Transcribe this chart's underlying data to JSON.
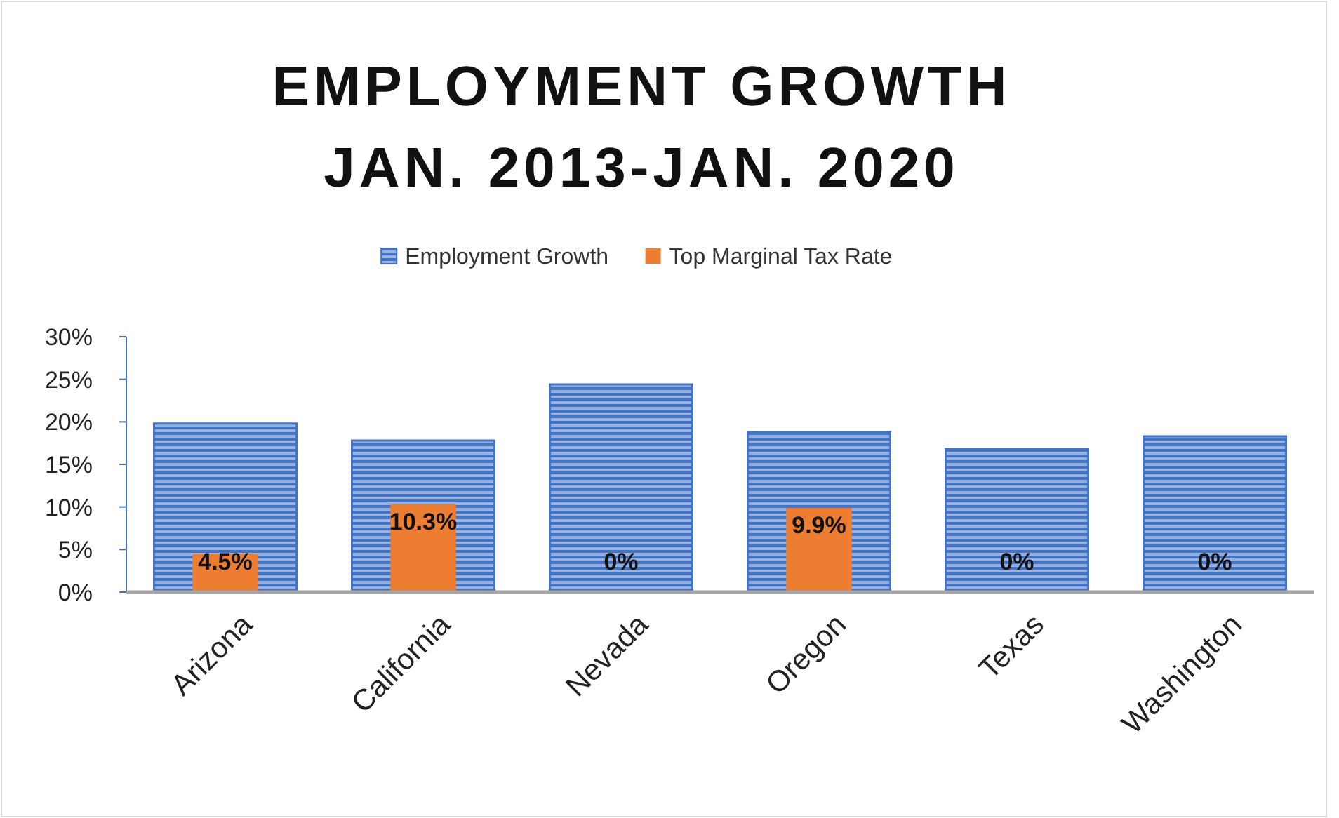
{
  "chart_data": {
    "type": "bar",
    "title": "EMPLOYMENT GROWTH\nJAN. 2013-JAN. 2020",
    "categories": [
      "Arizona",
      "California",
      "Nevada",
      "Oregon",
      "Texas",
      "Washington"
    ],
    "series": [
      {
        "name": "Employment Growth",
        "color": "#4472c4",
        "values": [
          19.8,
          17.8,
          24.4,
          18.8,
          16.8,
          18.3
        ]
      },
      {
        "name": "Top Marginal Tax Rate",
        "color": "#ed7d31",
        "values": [
          4.5,
          10.3,
          0,
          9.9,
          0,
          0
        ],
        "value_labels": [
          "4.5%",
          "10.3%",
          "0%",
          "9.9%",
          "0%",
          "0%"
        ]
      }
    ],
    "ylim": [
      0,
      30
    ],
    "yticks": [
      {
        "value": 0,
        "label": "0%"
      },
      {
        "value": 5,
        "label": "5%"
      },
      {
        "value": 10,
        "label": "10%"
      },
      {
        "value": 15,
        "label": "15%"
      },
      {
        "value": 20,
        "label": "20%"
      },
      {
        "value": 25,
        "label": "25%"
      },
      {
        "value": 30,
        "label": "30%"
      }
    ],
    "grid": false,
    "legend": "top"
  }
}
